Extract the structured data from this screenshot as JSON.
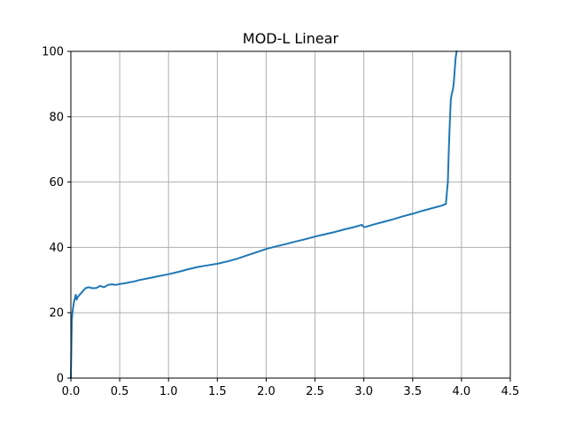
{
  "chart_data": {
    "type": "line",
    "title": "MOD-L Linear",
    "xlabel": "",
    "ylabel": "",
    "xlim": [
      0,
      4.5
    ],
    "ylim": [
      0,
      100
    ],
    "xticks": [
      0.0,
      0.5,
      1.0,
      1.5,
      2.0,
      2.5,
      3.0,
      3.5,
      4.0,
      4.5
    ],
    "xtick_labels": [
      "0.0",
      "0.5",
      "1.0",
      "1.5",
      "2.0",
      "2.5",
      "3.0",
      "3.5",
      "4.0",
      "4.5"
    ],
    "yticks": [
      0,
      20,
      40,
      60,
      80,
      100
    ],
    "ytick_labels": [
      "0",
      "20",
      "40",
      "60",
      "80",
      "100"
    ],
    "grid": true,
    "series": [
      {
        "color": "#1f77b4",
        "x": [
          0.0,
          0.01,
          0.02,
          0.03,
          0.05,
          0.06,
          0.07,
          0.09,
          0.12,
          0.15,
          0.18,
          0.22,
          0.26,
          0.3,
          0.34,
          0.38,
          0.42,
          0.46,
          0.5,
          0.55,
          0.6,
          0.65,
          0.7,
          0.8,
          0.9,
          1.0,
          1.1,
          1.2,
          1.3,
          1.4,
          1.5,
          1.6,
          1.7,
          1.8,
          1.9,
          2.0,
          2.1,
          2.2,
          2.3,
          2.4,
          2.5,
          2.6,
          2.7,
          2.8,
          2.9,
          2.98,
          3.0,
          3.02,
          3.1,
          3.2,
          3.3,
          3.4,
          3.5,
          3.6,
          3.7,
          3.8,
          3.84,
          3.86,
          3.87,
          3.88,
          3.89,
          3.9,
          3.91,
          3.92,
          3.93,
          3.94,
          3.95
        ],
        "y": [
          0.0,
          18.0,
          21.0,
          23.0,
          25.5,
          24.0,
          24.8,
          25.5,
          26.5,
          27.5,
          27.8,
          27.5,
          27.6,
          28.2,
          27.8,
          28.5,
          28.7,
          28.5,
          28.8,
          29.0,
          29.3,
          29.6,
          30.0,
          30.6,
          31.2,
          31.8,
          32.5,
          33.3,
          34.0,
          34.5,
          35.0,
          35.7,
          36.5,
          37.5,
          38.5,
          39.5,
          40.3,
          41.0,
          41.8,
          42.5,
          43.3,
          44.0,
          44.7,
          45.5,
          46.2,
          46.9,
          46.2,
          46.3,
          47.0,
          47.8,
          48.6,
          49.5,
          50.3,
          51.2,
          52.0,
          52.8,
          53.3,
          60.0,
          70.0,
          78.0,
          85.0,
          87.0,
          88.0,
          90.0,
          94.0,
          98.0,
          100.0
        ]
      }
    ]
  }
}
